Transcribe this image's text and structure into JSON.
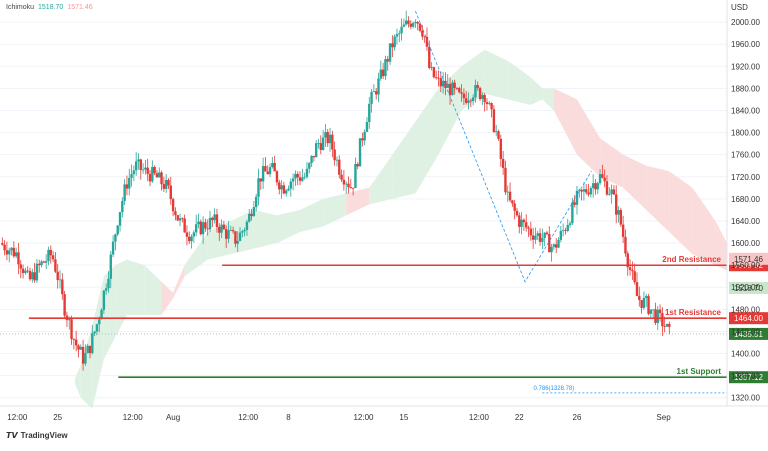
{
  "chart_data": {
    "type": "candlestick",
    "indicator": {
      "name": "Ichimoku",
      "values": [
        "1518.70",
        "1571.46"
      ]
    },
    "y_axis": {
      "unit": "USD",
      "range": [
        1300,
        2040
      ],
      "ticks": [
        2000,
        1960,
        1920,
        1880,
        1840,
        1800,
        1760,
        1720,
        1680,
        1640,
        1600,
        1560,
        1520,
        1480,
        1440,
        1400,
        1360,
        1320
      ],
      "tick_labels": [
        "2000.00",
        "1960.00",
        "1920.00",
        "1880.00",
        "1840.00",
        "1800.00",
        "1760.00",
        "1720.00",
        "1680.00",
        "1640.00",
        "1600.00",
        "1560.00",
        "1520.00",
        "1480.00",
        "1440.00",
        "1400.00",
        "1360.00",
        "1320.00"
      ]
    },
    "x_axis": {
      "ticks": [
        {
          "label": "12:00",
          "pos": 0.3
        },
        {
          "label": "25",
          "pos": 1
        },
        {
          "label": "12:00",
          "pos": 2.3
        },
        {
          "label": "Aug",
          "pos": 3
        },
        {
          "label": "12:00",
          "pos": 4.3
        },
        {
          "label": "8",
          "pos": 5
        },
        {
          "label": "12:00",
          "pos": 6.3
        },
        {
          "label": "15",
          "pos": 7
        },
        {
          "label": "12:00",
          "pos": 8.3
        },
        {
          "label": "22",
          "pos": 9
        },
        {
          "label": "26",
          "pos": 10
        },
        {
          "label": "Sep",
          "pos": 11.5
        }
      ]
    },
    "levels": [
      {
        "name": "2nd Resistance",
        "value": 1559.82,
        "label": "1559.82",
        "color": "#e53935"
      },
      {
        "name": "1st Resistance",
        "value": 1464.0,
        "label": "1464.00",
        "color": "#e53935"
      },
      {
        "name": "1st Support",
        "value": 1357.12,
        "label": "1357.12",
        "color": "#2e7d32"
      }
    ],
    "price_tags": [
      {
        "value": 1571.46,
        "label": "1571.46",
        "bg": "#f8c4c4",
        "fg": "#333333"
      },
      {
        "value": 1518.7,
        "label": "1518.70",
        "bg": "#c8e6c9",
        "fg": "#333333"
      },
      {
        "value": 1435.51,
        "label": "1435.51",
        "bg": "#2e7d32",
        "fg": "#ffffff"
      }
    ],
    "fib": {
      "label": "0.786(1328.78)",
      "value": 1328.78
    },
    "current_price": 1435.51,
    "close_path": [
      [
        0,
        1600
      ],
      [
        0.3,
        1580
      ],
      [
        0.5,
        1530
      ],
      [
        0.7,
        1560
      ],
      [
        0.9,
        1580
      ],
      [
        1.0,
        1540
      ],
      [
        1.1,
        1490
      ],
      [
        1.3,
        1420
      ],
      [
        1.45,
        1390
      ],
      [
        1.55,
        1410
      ],
      [
        1.7,
        1460
      ],
      [
        1.9,
        1560
      ],
      [
        2.05,
        1650
      ],
      [
        2.2,
        1710
      ],
      [
        2.35,
        1740
      ],
      [
        2.5,
        1730
      ],
      [
        2.7,
        1720
      ],
      [
        2.9,
        1700
      ],
      [
        3.1,
        1640
      ],
      [
        3.3,
        1615
      ],
      [
        3.5,
        1630
      ],
      [
        3.7,
        1640
      ],
      [
        3.9,
        1620
      ],
      [
        4.1,
        1605
      ],
      [
        4.3,
        1640
      ],
      [
        4.5,
        1720
      ],
      [
        4.7,
        1735
      ],
      [
        4.9,
        1700
      ],
      [
        5.1,
        1720
      ],
      [
        5.3,
        1720
      ],
      [
        5.5,
        1780
      ],
      [
        5.7,
        1790
      ],
      [
        5.9,
        1730
      ],
      [
        6.1,
        1700
      ],
      [
        6.25,
        1780
      ],
      [
        6.4,
        1850
      ],
      [
        6.6,
        1900
      ],
      [
        6.8,
        1960
      ],
      [
        7.0,
        1990
      ],
      [
        7.2,
        2010
      ],
      [
        7.35,
        1980
      ],
      [
        7.45,
        1910
      ],
      [
        7.6,
        1890
      ],
      [
        7.8,
        1880
      ],
      [
        8.0,
        1860
      ],
      [
        8.2,
        1875
      ],
      [
        8.4,
        1870
      ],
      [
        8.6,
        1800
      ],
      [
        8.8,
        1680
      ],
      [
        9.0,
        1640
      ],
      [
        9.2,
        1620
      ],
      [
        9.4,
        1610
      ],
      [
        9.6,
        1590
      ],
      [
        9.8,
        1630
      ],
      [
        10.0,
        1680
      ],
      [
        10.2,
        1700
      ],
      [
        10.4,
        1720
      ],
      [
        10.6,
        1690
      ],
      [
        10.75,
        1640
      ],
      [
        10.9,
        1560
      ],
      [
        11.05,
        1500
      ],
      [
        11.2,
        1490
      ],
      [
        11.35,
        1470
      ],
      [
        11.5,
        1455
      ],
      [
        11.6,
        1435
      ]
    ],
    "cloud": [
      [
        1.3,
        1345,
        1355,
        "g"
      ],
      [
        1.4,
        1320,
        1380,
        "g"
      ],
      [
        1.6,
        1300,
        1450,
        "g"
      ],
      [
        1.8,
        1390,
        1540,
        "g"
      ],
      [
        2.0,
        1430,
        1560,
        "g"
      ],
      [
        2.2,
        1470,
        1570,
        "g"
      ],
      [
        2.5,
        1470,
        1560,
        "g"
      ],
      [
        2.8,
        1470,
        1530,
        "r"
      ],
      [
        3.0,
        1500,
        1510,
        "r"
      ],
      [
        3.2,
        1540,
        1560,
        "g"
      ],
      [
        3.6,
        1570,
        1620,
        "g"
      ],
      [
        4.0,
        1580,
        1640,
        "g"
      ],
      [
        4.4,
        1590,
        1660,
        "g"
      ],
      [
        4.8,
        1600,
        1650,
        "g"
      ],
      [
        5.2,
        1620,
        1660,
        "g"
      ],
      [
        5.6,
        1630,
        1680,
        "g"
      ],
      [
        6.0,
        1650,
        1690,
        "r"
      ],
      [
        6.4,
        1670,
        1700,
        "g"
      ],
      [
        6.8,
        1680,
        1760,
        "g"
      ],
      [
        7.2,
        1690,
        1820,
        "g"
      ],
      [
        7.6,
        1760,
        1880,
        "g"
      ],
      [
        8.0,
        1840,
        1920,
        "g"
      ],
      [
        8.4,
        1870,
        1950,
        "g"
      ],
      [
        8.8,
        1860,
        1930,
        "g"
      ],
      [
        9.2,
        1850,
        1900,
        "g"
      ],
      [
        9.4,
        1860,
        1880,
        "g"
      ],
      [
        9.6,
        1840,
        1880,
        "r"
      ],
      [
        10.0,
        1760,
        1860,
        "r"
      ],
      [
        10.4,
        1720,
        1790,
        "r"
      ],
      [
        10.8,
        1700,
        1760,
        "r"
      ],
      [
        11.2,
        1660,
        1740,
        "r"
      ],
      [
        11.6,
        1620,
        1730,
        "r"
      ],
      [
        12.0,
        1580,
        1700,
        "r"
      ],
      [
        12.4,
        1560,
        1640,
        "r"
      ],
      [
        12.6,
        1550,
        1600,
        "r"
      ]
    ],
    "zigzag": [
      [
        7.2,
        2020
      ],
      [
        9.1,
        1530
      ],
      [
        10.25,
        1730
      ]
    ]
  },
  "legend": {
    "name": "Ichimoku",
    "v1": "1518.70",
    "v2": "1571.46"
  },
  "brand": "TradingView",
  "colors": {
    "up": "#26a69a",
    "down": "#e53935",
    "cloud_green": "#dff1e3",
    "cloud_red": "#fbdcdc",
    "support": "#2e7d32",
    "resistance": "#e53935"
  }
}
